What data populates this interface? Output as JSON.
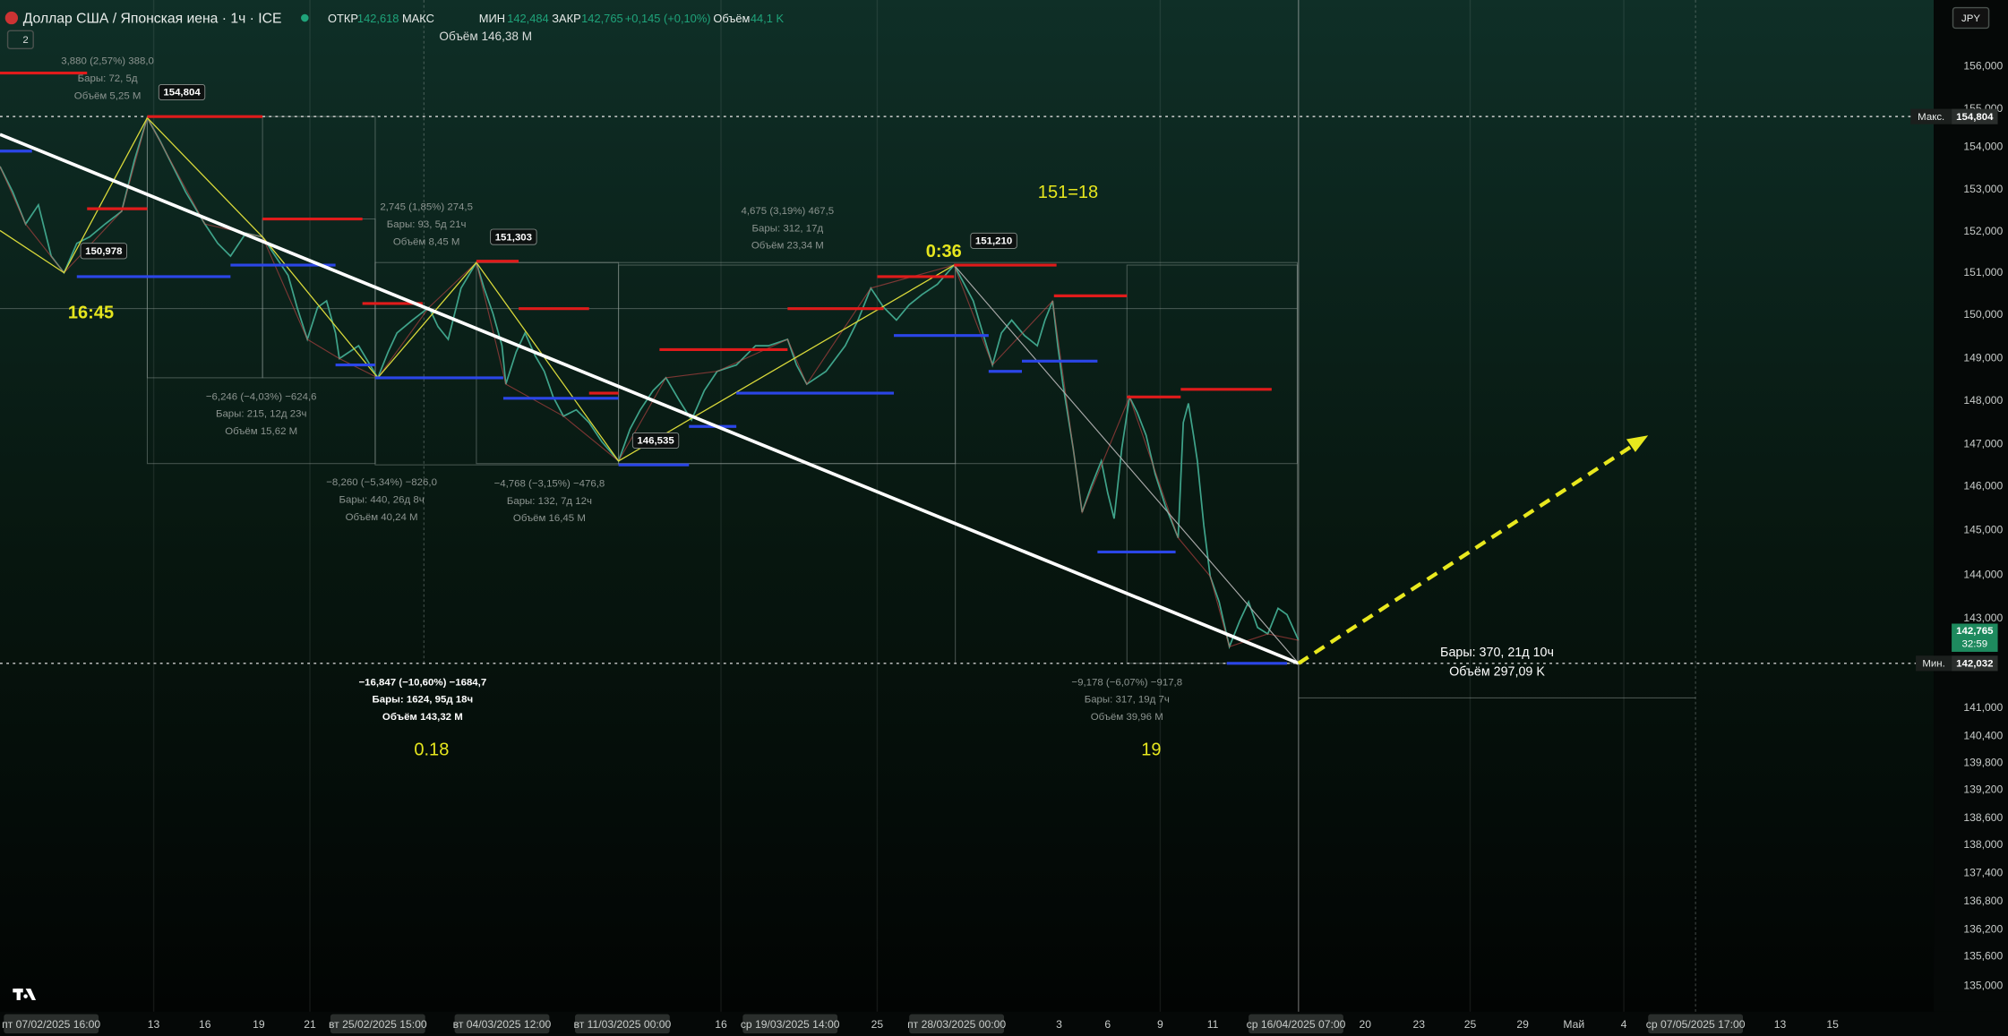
{
  "header": {
    "symbol": "Доллар США / Японская иена · 1ч · ICE",
    "open_label": "ОТКР",
    "open": "142,618",
    "high_label": "МАКС",
    "low_label": "МИН",
    "low": "142,484",
    "close_label": "ЗАКР",
    "close": "142,765",
    "change": "+0,145 (+0,10%)",
    "volume_label": "Объём",
    "volume": "44,1 K",
    "overlay_volume": "Объём 146,38 M",
    "currency": "JPY",
    "collapse_count": "2"
  },
  "price_axis": [
    "156,000",
    "155,000",
    "154,000",
    "153,000",
    "152,000",
    "151,000",
    "150,000",
    "149,000",
    "148,000",
    "147,000",
    "146,000",
    "145,000",
    "144,000",
    "143,000",
    "141,000",
    "140,400",
    "139,800",
    "139,200",
    "138,600",
    "138,000",
    "137,400",
    "136,800",
    "136,200",
    "135,600",
    "135,000"
  ],
  "time_axis": [
    "пт 07/02/2025   16:00",
    "13",
    "16",
    "19",
    "21",
    "вт 25/02/2025   15:00",
    "вт 04/03/2025   12:00",
    "вт 11/03/2025   00:00",
    "16",
    "ср 19/03/2025   14:00",
    "25",
    "пт 28/03/2025   00:00",
    "3",
    "6",
    "9",
    "11",
    "ср 16/04/2025   07:00",
    "20",
    "23",
    "25",
    "29",
    "Май",
    "4",
    "ср 07/05/2025   17:00",
    "13",
    "15"
  ],
  "price_tags": {
    "max_label": "Макс.",
    "max": "154,804",
    "last": "142,765",
    "countdown": "32:59",
    "min_label": "Мин.",
    "min": "142,032"
  },
  "pivot_labels": [
    "154,804",
    "150,978",
    "151,303",
    "151,210",
    "146,535"
  ],
  "notes": [
    "16:45",
    "0:36",
    "151=18",
    "0.18",
    "19"
  ],
  "measurements": [
    [
      "3,880 (2,57%) 388,0",
      "Бары: 72, 5д",
      "Объём 5,25 M"
    ],
    [
      "2,745 (1,85%) 274,5",
      "Бары: 93, 5д 21ч",
      "Объём 8,45 M"
    ],
    [
      "4,675 (3,19%) 467,5",
      "Бары: 312, 17д",
      "Объём 23,34 M"
    ],
    [
      "−6,246 (−4,03%) −624,6",
      "Бары: 215, 12д 23ч",
      "Объём 15,62 M"
    ],
    [
      "−8,260 (−5,34%) −826,0",
      "Бары: 440, 26д 8ч",
      "Объём 40,24 M"
    ],
    [
      "−4,768 (−3,15%) −476,8",
      "Бары: 132, 7д 12ч",
      "Объём 16,45 M"
    ],
    [
      "−16,847 (−10,60%) −1684,7",
      "Бары: 1624, 95д 18ч",
      "Объём 143,32 M"
    ],
    [
      "−9,178 (−6,07%) −917,8",
      "Бары: 317, 19д 7ч",
      "Объём 39,96 M"
    ],
    [
      "Бары: 370, 21д 10ч",
      "Объём 297,09 K"
    ]
  ]
}
